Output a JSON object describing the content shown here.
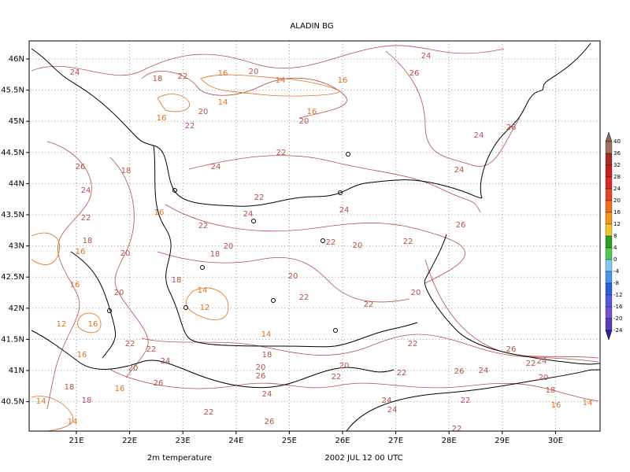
{
  "map": {
    "title": "ALADIN BG",
    "field_label": "2m temperature",
    "time_label": "2002 JUL 12 00 UTC",
    "lon_ticks": [
      {
        "value": 21,
        "label": "21E"
      },
      {
        "value": 22,
        "label": "22E"
      },
      {
        "value": 23,
        "label": "23E"
      },
      {
        "value": 24,
        "label": "24E"
      },
      {
        "value": 25,
        "label": "25E"
      },
      {
        "value": 26,
        "label": "26E"
      },
      {
        "value": 27,
        "label": "27E"
      },
      {
        "value": 28,
        "label": "28E"
      },
      {
        "value": 29,
        "label": "29E"
      },
      {
        "value": 30,
        "label": "30E"
      }
    ],
    "lat_ticks": [
      {
        "value": 46,
        "label": "46N"
      },
      {
        "value": 45.5,
        "label": "45.5N"
      },
      {
        "value": 45,
        "label": "45N"
      },
      {
        "value": 44.5,
        "label": "44.5N"
      },
      {
        "value": 44,
        "label": "44N"
      },
      {
        "value": 43.5,
        "label": "43.5N"
      },
      {
        "value": 43,
        "label": "43N"
      },
      {
        "value": 42.5,
        "label": "42.5N"
      },
      {
        "value": 42,
        "label": "42N"
      },
      {
        "value": 41.5,
        "label": "41.5N"
      },
      {
        "value": 41,
        "label": "41N"
      },
      {
        "value": 40.5,
        "label": "40.5N"
      }
    ],
    "grid": true,
    "contour_color": "#b4504a",
    "contour_color_cool": "#e07020",
    "colorbar": {
      "levels": [
        40,
        36,
        32,
        28,
        24,
        20,
        16,
        12,
        8,
        4,
        0,
        -4,
        -8,
        -12,
        -16,
        -20,
        -24
      ],
      "colors": [
        "#8c6a5a",
        "#a07060",
        "#a52a2a",
        "#c81e1e",
        "#dc2828",
        "#e64628",
        "#f06e1e",
        "#f5961e",
        "#f0c828",
        "#28a028",
        "#50c850",
        "#82c8f0",
        "#4696f0",
        "#2864dc",
        "#5a5adc",
        "#7850c8",
        "#5a3cb4",
        "#3c1ea0"
      ]
    },
    "contour_labels": [
      24,
      18,
      22,
      16,
      20,
      14,
      16,
      24,
      26,
      14,
      20,
      16,
      22,
      16,
      20,
      24,
      26,
      26,
      18,
      24,
      22,
      22,
      24,
      24,
      22,
      16,
      24,
      24,
      18,
      20,
      22,
      20,
      18,
      16,
      22,
      20,
      22,
      26,
      20,
      18,
      16,
      14,
      20,
      12,
      22,
      22,
      20,
      12,
      16,
      22,
      22,
      14,
      18,
      22,
      26,
      16,
      24,
      20,
      20,
      22,
      22,
      26,
      24,
      22,
      24,
      20,
      18,
      20,
      26,
      26,
      16,
      18,
      18,
      14,
      14,
      24,
      24,
      22,
      16,
      14,
      22,
      26,
      22,
      24
    ]
  }
}
